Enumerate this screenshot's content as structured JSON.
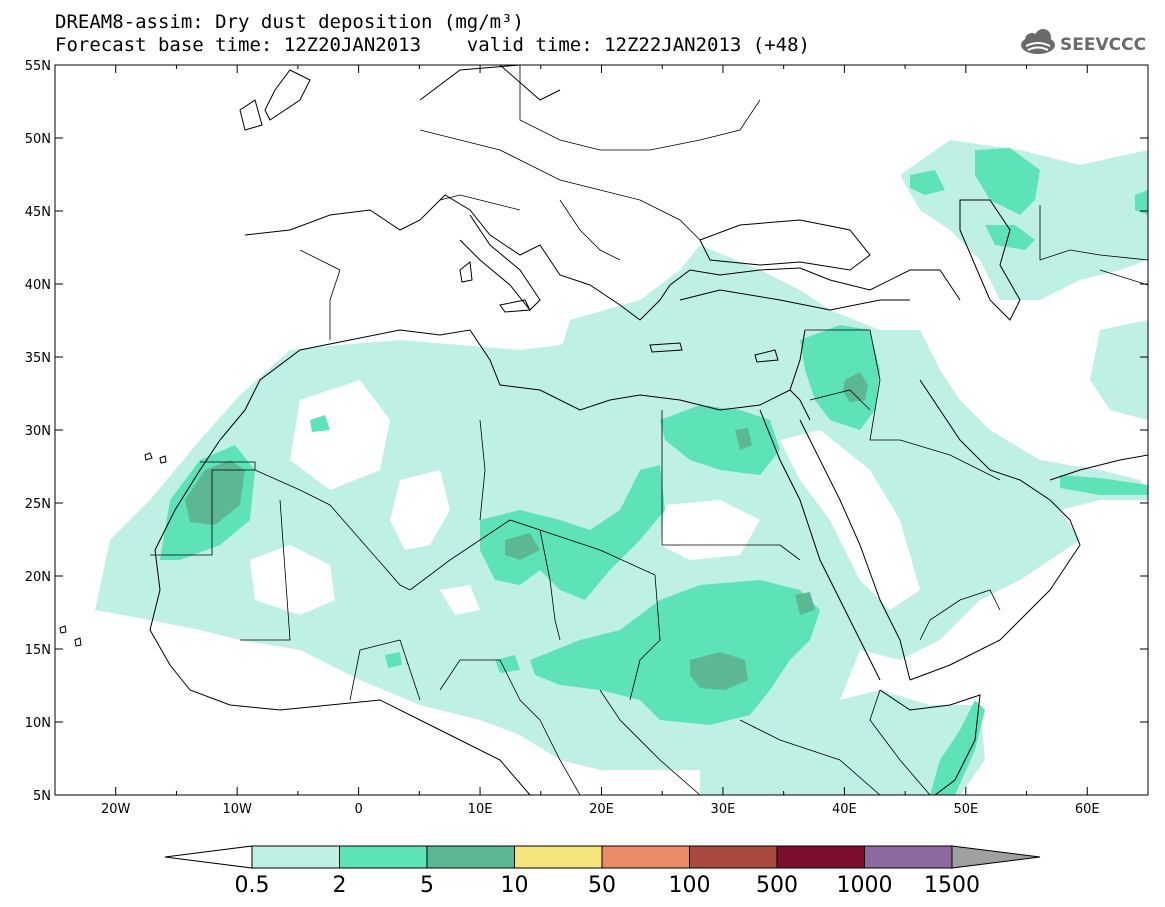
{
  "header": {
    "title_line1": "DREAM8-assim: Dry dust deposition (mg/m³)",
    "title_line2": "Forecast base time: 12Z20JAN2013    valid time: 12Z22JAN2013 (+48)",
    "logo_text": "SEEVCCC",
    "logo_icon": "cloud-icon"
  },
  "map": {
    "lon_range": [
      -25,
      65
    ],
    "lat_range": [
      5,
      55
    ],
    "lon_labels": [
      "20W",
      "10W",
      "0",
      "10E",
      "20E",
      "30E",
      "40E",
      "50E",
      "60E"
    ],
    "lat_labels": [
      "55N",
      "50N",
      "45N",
      "40N",
      "35N",
      "30N",
      "25N",
      "20N",
      "15N",
      "10N",
      "5N"
    ]
  },
  "colorbar": {
    "labels": [
      "0.5",
      "2",
      "5",
      "10",
      "50",
      "100",
      "500",
      "1000",
      "1500"
    ],
    "colors": [
      "#bff0e6",
      "#5ee3b8",
      "#5cb892",
      "#f4e57a",
      "#ea8c67",
      "#a84a40",
      "#7d0f2c",
      "#8c6aa0"
    ],
    "under_color": "#ffffff",
    "over_color": "#a0a0a0"
  }
}
